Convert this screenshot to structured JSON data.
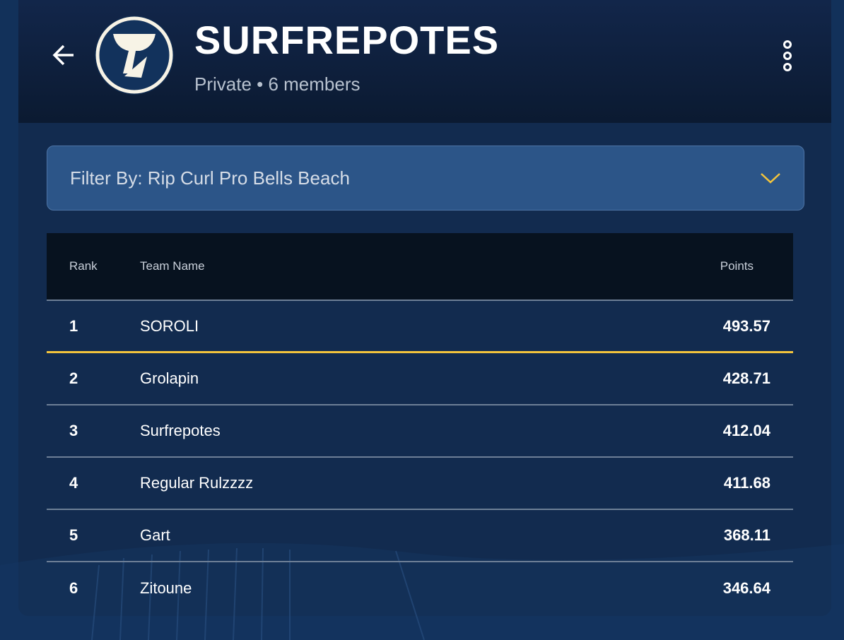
{
  "header": {
    "title": "SURFREPOTES",
    "subtitle": "Private • 6 members",
    "back_icon": "arrow-left-icon",
    "menu_icon": "more-vertical-icon"
  },
  "filter": {
    "label": "Filter By: Rip Curl Pro Bells Beach",
    "icon": "chevron-down-icon",
    "accent": "#f3c43c"
  },
  "table": {
    "columns": [
      "Rank",
      "Team Name",
      "Points"
    ],
    "rows": [
      {
        "rank": "1",
        "team": "SOROLI",
        "points": "493.57"
      },
      {
        "rank": "2",
        "team": "Grolapin",
        "points": "428.71"
      },
      {
        "rank": "3",
        "team": "Surfrepotes",
        "points": "412.04"
      },
      {
        "rank": "4",
        "team": "Regular Rulzzzz",
        "points": "411.68"
      },
      {
        "rank": "5",
        "team": "Gart",
        "points": "368.11"
      },
      {
        "rank": "6",
        "team": "Zitoune",
        "points": "346.64"
      }
    ]
  }
}
